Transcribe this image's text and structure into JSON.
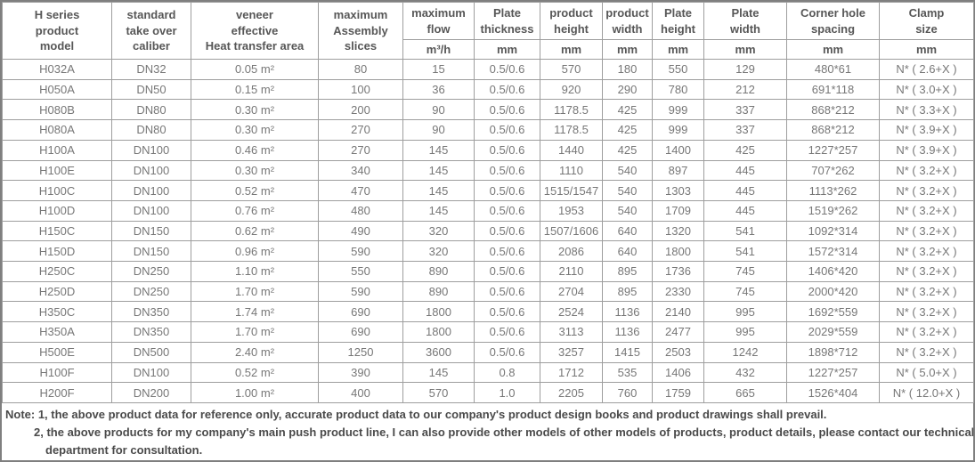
{
  "colors": {
    "background": "#ffffff",
    "outer_border": "#7f7f7f",
    "grid_border": "#9e9e9e",
    "header_text": "#575757",
    "data_text": "#777777",
    "note_text": "#4a4a4a"
  },
  "table": {
    "columns": [
      {
        "id": "model",
        "lines": [
          "H series",
          "product",
          "model"
        ],
        "unit": null
      },
      {
        "id": "caliber",
        "lines": [
          "standard",
          "take over",
          "caliber"
        ],
        "unit": null
      },
      {
        "id": "area",
        "lines": [
          "veneer",
          "effective",
          "Heat transfer area"
        ],
        "unit": null
      },
      {
        "id": "slices",
        "lines": [
          "maximum",
          "Assembly",
          "slices"
        ],
        "unit": null
      },
      {
        "id": "flow",
        "lines": [
          "maximum",
          "flow"
        ],
        "unit": "m³/h"
      },
      {
        "id": "thickness",
        "lines": [
          "Plate",
          "thickness"
        ],
        "unit": "mm"
      },
      {
        "id": "product-height",
        "lines": [
          "product",
          "height"
        ],
        "unit": "mm"
      },
      {
        "id": "product-width",
        "lines": [
          "product",
          "width"
        ],
        "unit": "mm"
      },
      {
        "id": "plate-height",
        "lines": [
          "Plate",
          "height"
        ],
        "unit": "mm"
      },
      {
        "id": "plate-width",
        "lines": [
          "Plate",
          "width"
        ],
        "unit": "mm"
      },
      {
        "id": "corner-hole",
        "lines": [
          "Corner hole",
          "spacing"
        ],
        "unit": "mm"
      },
      {
        "id": "clamp",
        "lines": [
          "Clamp",
          "size"
        ],
        "unit": "mm"
      }
    ],
    "rows": [
      [
        "H032A",
        "DN32",
        "0.05 m²",
        "80",
        "15",
        "0.5/0.6",
        "570",
        "180",
        "550",
        "129",
        "480*61",
        "N* ( 2.6+X )"
      ],
      [
        "H050A",
        "DN50",
        "0.15 m²",
        "100",
        "36",
        "0.5/0.6",
        "920",
        "290",
        "780",
        "212",
        "691*118",
        "N* ( 3.0+X )"
      ],
      [
        "H080B",
        "DN80",
        "0.30 m²",
        "200",
        "90",
        "0.5/0.6",
        "1178.5",
        "425",
        "999",
        "337",
        "868*212",
        "N* ( 3.3+X )"
      ],
      [
        "H080A",
        "DN80",
        "0.30 m²",
        "270",
        "90",
        "0.5/0.6",
        "1178.5",
        "425",
        "999",
        "337",
        "868*212",
        "N* ( 3.9+X )"
      ],
      [
        "H100A",
        "DN100",
        "0.46 m²",
        "270",
        "145",
        "0.5/0.6",
        "1440",
        "425",
        "1400",
        "425",
        "1227*257",
        "N* ( 3.9+X )"
      ],
      [
        "H100E",
        "DN100",
        "0.30 m²",
        "340",
        "145",
        "0.5/0.6",
        "1110",
        "540",
        "897",
        "445",
        "707*262",
        "N* ( 3.2+X )"
      ],
      [
        "H100C",
        "DN100",
        "0.52 m²",
        "470",
        "145",
        "0.5/0.6",
        "1515/1547",
        "540",
        "1303",
        "445",
        "1113*262",
        "N* ( 3.2+X )"
      ],
      [
        "H100D",
        "DN100",
        "0.76 m²",
        "480",
        "145",
        "0.5/0.6",
        "1953",
        "540",
        "1709",
        "445",
        "1519*262",
        "N* ( 3.2+X )"
      ],
      [
        "H150C",
        "DN150",
        "0.62 m²",
        "490",
        "320",
        "0.5/0.6",
        "1507/1606",
        "640",
        "1320",
        "541",
        "1092*314",
        "N* ( 3.2+X )"
      ],
      [
        "H150D",
        "DN150",
        "0.96 m²",
        "590",
        "320",
        "0.5/0.6",
        "2086",
        "640",
        "1800",
        "541",
        "1572*314",
        "N* ( 3.2+X )"
      ],
      [
        "H250C",
        "DN250",
        "1.10 m²",
        "550",
        "890",
        "0.5/0.6",
        "2110",
        "895",
        "1736",
        "745",
        "1406*420",
        "N* ( 3.2+X )"
      ],
      [
        "H250D",
        "DN250",
        "1.70 m²",
        "590",
        "890",
        "0.5/0.6",
        "2704",
        "895",
        "2330",
        "745",
        "2000*420",
        "N* ( 3.2+X )"
      ],
      [
        "H350C",
        "DN350",
        "1.74 m²",
        "690",
        "1800",
        "0.5/0.6",
        "2524",
        "1136",
        "2140",
        "995",
        "1692*559",
        "N* ( 3.2+X )"
      ],
      [
        "H350A",
        "DN350",
        "1.70 m²",
        "690",
        "1800",
        "0.5/0.6",
        "3113",
        "1136",
        "2477",
        "995",
        "2029*559",
        "N* ( 3.2+X )"
      ],
      [
        "H500E",
        "DN500",
        "2.40 m²",
        "1250",
        "3600",
        "0.5/0.6",
        "3257",
        "1415",
        "2503",
        "1242",
        "1898*712",
        "N* ( 3.2+X )"
      ],
      [
        "H100F",
        "DN100",
        "0.52 m²",
        "390",
        "145",
        "0.8",
        "1712",
        "535",
        "1406",
        "432",
        "1227*257",
        "N* ( 5.0+X )"
      ],
      [
        "H200F",
        "DN200",
        "1.00 m²",
        "400",
        "570",
        "1.0",
        "2205",
        "760",
        "1759",
        "665",
        "1526*404",
        "N* ( 12.0+X )"
      ]
    ]
  },
  "note": {
    "line1": "Note: 1, the above product data for reference only, accurate product data to our company's product design books and product drawings shall prevail.",
    "line2": "2, the above products for my company's main push product line, I can also provide other models of other models of products, product details, please contact our technical",
    "line3": "department for consultation."
  }
}
